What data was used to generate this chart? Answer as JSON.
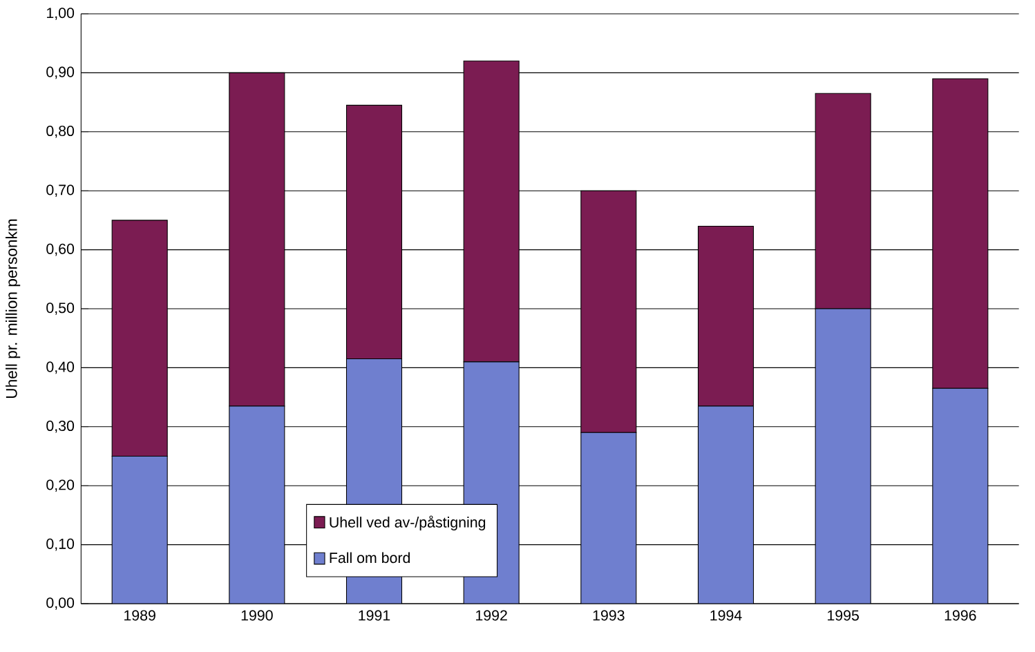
{
  "chart_data": {
    "type": "bar",
    "stacked": true,
    "ylabel": "Uhell pr. million personkm",
    "categories": [
      "1989",
      "1990",
      "1991",
      "1992",
      "1993",
      "1994",
      "1995",
      "1996"
    ],
    "series": [
      {
        "name": "Fall om bord",
        "color": "#6f7fcf",
        "values": [
          0.25,
          0.335,
          0.415,
          0.41,
          0.29,
          0.335,
          0.5,
          0.365
        ]
      },
      {
        "name": "Uhell ved av-/påstigning",
        "color": "#7b1c52",
        "values": [
          0.4,
          0.565,
          0.43,
          0.51,
          0.41,
          0.305,
          0.365,
          0.525
        ]
      }
    ],
    "ylim": [
      0,
      1
    ],
    "yticks": [
      {
        "value": 0,
        "label": "0,00"
      },
      {
        "value": 0.1,
        "label": "0,10"
      },
      {
        "value": 0.2,
        "label": "0,20"
      },
      {
        "value": 0.3,
        "label": "0,30"
      },
      {
        "value": 0.4,
        "label": "0,40"
      },
      {
        "value": 0.5,
        "label": "0,50"
      },
      {
        "value": 0.6,
        "label": "0,60"
      },
      {
        "value": 0.7,
        "label": "0,70"
      },
      {
        "value": 0.8,
        "label": "0,80"
      },
      {
        "value": 0.9,
        "label": "0,90"
      },
      {
        "value": 1,
        "label": "1,00"
      }
    ],
    "grid": "y",
    "legend": "bottom"
  }
}
